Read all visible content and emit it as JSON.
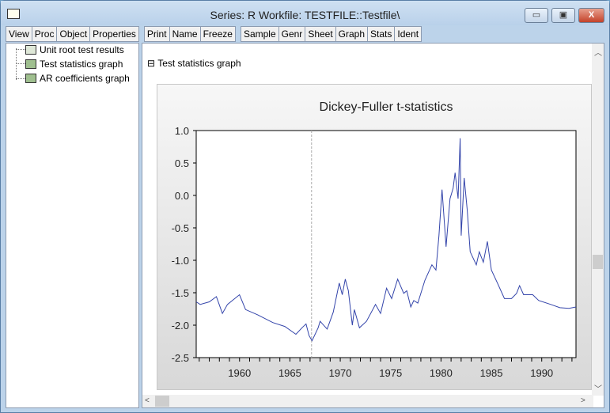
{
  "window": {
    "title": "Series: R   Workfile: TESTFILE::Testfile\\",
    "minimize": "▭",
    "maximize": "▣",
    "close": "X"
  },
  "toolbar": [
    "View",
    "Proc",
    "Object",
    "Properties",
    "|",
    "Print",
    "Name",
    "Freeze",
    "|",
    "Sample",
    "Genr",
    "Sheet",
    "Graph",
    "Stats",
    "Ident"
  ],
  "tree": [
    {
      "label": "Unit root test results",
      "icon": "table-icon"
    },
    {
      "label": "Test statistics graph",
      "icon": "graph-icon"
    },
    {
      "label": "AR coefficients graph",
      "icon": "graph-icon"
    }
  ],
  "section": {
    "toggle": "⊟",
    "label": "Test statistics graph"
  },
  "colors": {
    "line": "#3344aa",
    "refline": "#aaaaaa"
  },
  "chart_data": {
    "type": "line",
    "title": "Dickey-Fuller t-statistics",
    "xlim": [
      1955.7,
      1993.4
    ],
    "ylim": [
      -2.5,
      1.0
    ],
    "yticks": [
      "1.0",
      "0.5",
      "0.0",
      "-0.5",
      "-1.0",
      "-1.5",
      "-2.0",
      "-2.5"
    ],
    "xticks": [
      "1960",
      "1965",
      "1970",
      "1975",
      "1980",
      "1985",
      "1990"
    ],
    "vertical_reference_line": 1967.15,
    "x": [
      1955.7,
      1956.1,
      1957.0,
      1957.7,
      1958.3,
      1958.8,
      1960.0,
      1960.6,
      1961.8,
      1963.3,
      1964.5,
      1965.6,
      1966.2,
      1966.6,
      1966.9,
      1967.2,
      1967.8,
      1968.0,
      1968.7,
      1969.3,
      1969.9,
      1970.2,
      1970.5,
      1970.8,
      1971.2,
      1971.4,
      1971.9,
      1972.6,
      1973.5,
      1974.0,
      1974.6,
      1975.1,
      1975.7,
      1976.3,
      1976.6,
      1977.0,
      1977.3,
      1977.7,
      1978.4,
      1979.1,
      1979.5,
      1979.8,
      1980.1,
      1980.5,
      1980.9,
      1981.2,
      1981.4,
      1981.7,
      1981.9,
      1982.0,
      1982.3,
      1982.6,
      1982.9,
      1983.5,
      1983.8,
      1984.2,
      1984.6,
      1985.0,
      1985.6,
      1986.3,
      1987.0,
      1987.5,
      1987.8,
      1988.2,
      1989.1,
      1989.7,
      1990.9,
      1991.8,
      1992.7,
      1993.4
    ],
    "y": [
      -1.64,
      -1.68,
      -1.64,
      -1.56,
      -1.82,
      -1.68,
      -1.53,
      -1.76,
      -1.84,
      -1.96,
      -2.02,
      -2.14,
      -2.04,
      -1.98,
      -2.16,
      -2.24,
      -2.04,
      -1.94,
      -2.06,
      -1.8,
      -1.35,
      -1.53,
      -1.29,
      -1.47,
      -2.0,
      -1.76,
      -2.04,
      -1.94,
      -1.68,
      -1.82,
      -1.43,
      -1.59,
      -1.29,
      -1.51,
      -1.47,
      -1.72,
      -1.62,
      -1.66,
      -1.31,
      -1.07,
      -1.15,
      -0.62,
      0.09,
      -0.79,
      -0.05,
      0.11,
      0.35,
      -0.05,
      0.88,
      -0.62,
      0.27,
      -0.22,
      -0.87,
      -1.07,
      -0.87,
      -1.03,
      -0.71,
      -1.15,
      -1.35,
      -1.59,
      -1.59,
      -1.51,
      -1.39,
      -1.53,
      -1.53,
      -1.62,
      -1.68,
      -1.73,
      -1.74,
      -1.72
    ]
  }
}
